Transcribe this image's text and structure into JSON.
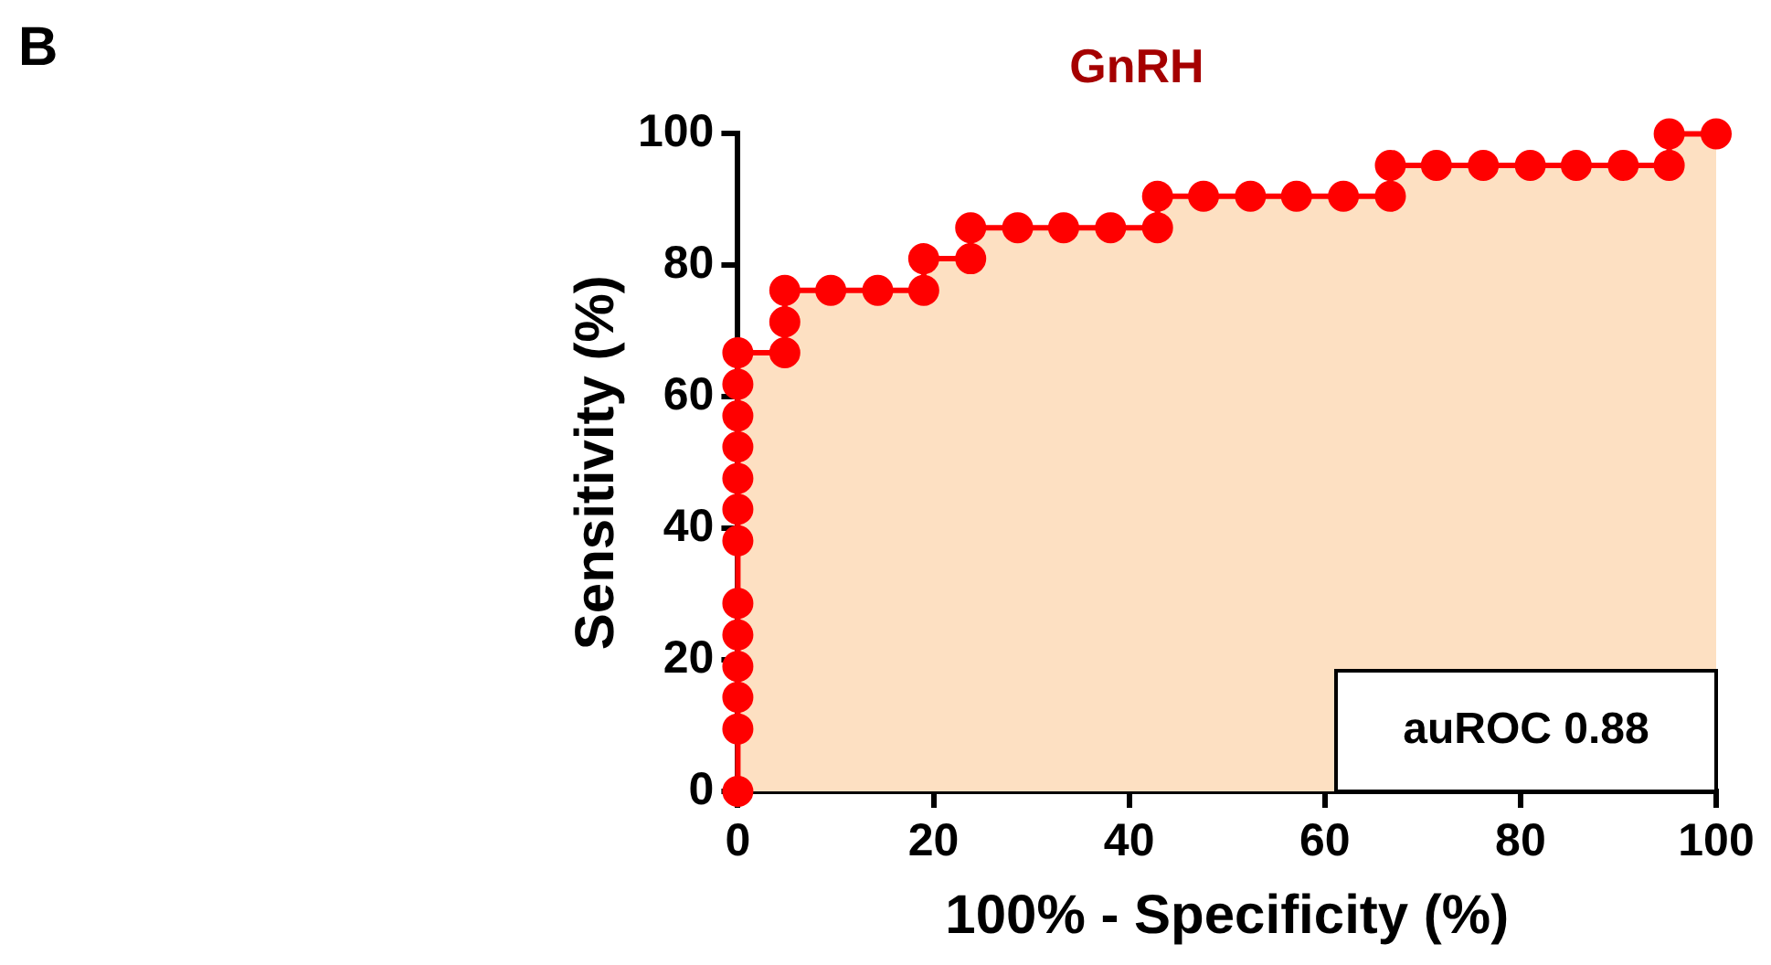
{
  "chart_data": {
    "type": "line",
    "title": "GnRH",
    "xlabel": "100% - Specificity (%)",
    "ylabel": "Sensitivity (%)",
    "annotations": [
      "B",
      "auROC 0.88"
    ],
    "series": [
      {
        "color": "#ff0000",
        "x": [
          0,
          0,
          0,
          0,
          0,
          0,
          0,
          0,
          0,
          0,
          0,
          0,
          0,
          4.8,
          4.8,
          4.8,
          9.5,
          14.3,
          19.0,
          19.0,
          23.8,
          23.8,
          28.6,
          33.3,
          38.1,
          42.9,
          42.9,
          47.6,
          52.4,
          57.1,
          61.9,
          66.7,
          66.7,
          71.4,
          76.2,
          81.0,
          85.7,
          90.5,
          95.2,
          95.2,
          100
        ],
        "values": [
          0,
          9.5,
          14.3,
          19.0,
          23.8,
          28.6,
          38.1,
          42.9,
          47.6,
          52.4,
          57.1,
          61.9,
          66.7,
          66.7,
          71.4,
          76.2,
          76.2,
          76.2,
          76.2,
          81.0,
          81.0,
          85.7,
          85.7,
          85.7,
          85.7,
          85.7,
          90.5,
          90.5,
          90.5,
          90.5,
          90.5,
          90.5,
          95.2,
          95.2,
          95.2,
          95.2,
          95.2,
          95.2,
          95.2,
          100,
          100
        ]
      }
    ],
    "xlim": [
      0,
      100
    ],
    "ylim": [
      0,
      100
    ],
    "xticks": [
      0,
      20,
      40,
      60,
      80,
      100
    ],
    "yticks": [
      0,
      20,
      40,
      60,
      80,
      100
    ],
    "grid": false,
    "legend": false,
    "marker": "circle",
    "line_style": "solid"
  }
}
